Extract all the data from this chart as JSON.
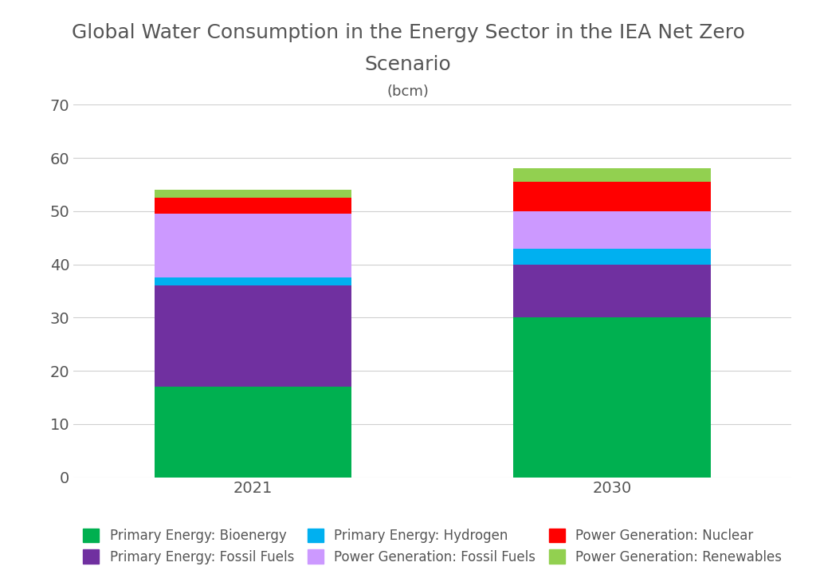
{
  "categories": [
    "2021",
    "2030"
  ],
  "title_line1": "Global Water Consumption in the Energy Sector in the IEA Net Zero",
  "title_line2": "Scenario",
  "subtitle": "(bcm)",
  "series": [
    {
      "label": "Primary Energy: Bioenergy",
      "color": "#00b050",
      "values": [
        17,
        30
      ]
    },
    {
      "label": "Primary Energy: Fossil Fuels",
      "color": "#7030a0",
      "values": [
        19,
        10
      ]
    },
    {
      "label": "Primary Energy: Hydrogen",
      "color": "#00b0f0",
      "values": [
        1.5,
        3
      ]
    },
    {
      "label": "Power Generation: Fossil Fuels",
      "color": "#cc99ff",
      "values": [
        12,
        7
      ]
    },
    {
      "label": "Power Generation: Nuclear",
      "color": "#ff0000",
      "values": [
        3,
        5.5
      ]
    },
    {
      "label": "Power Generation: Renewables",
      "color": "#92d050",
      "values": [
        1.5,
        2.5
      ]
    }
  ],
  "ylim": [
    0,
    70
  ],
  "yticks": [
    0,
    10,
    20,
    30,
    40,
    50,
    60,
    70
  ],
  "bar_width": 0.55,
  "x_positions": [
    0,
    1
  ],
  "background_color": "#ffffff",
  "grid_color": "#d0d0d0",
  "title_fontsize": 18,
  "subtitle_fontsize": 13,
  "tick_fontsize": 14,
  "legend_fontsize": 12,
  "xlim": [
    -0.5,
    1.5
  ]
}
